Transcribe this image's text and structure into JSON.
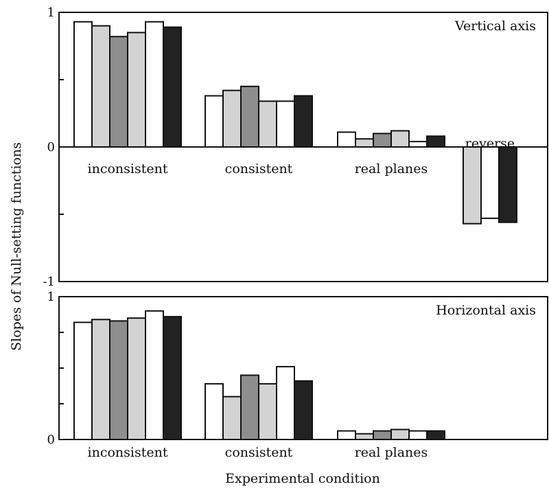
{
  "chart_data": {
    "type": "bar",
    "ylabel": "Slopes of Null-setting functions",
    "xlabel": "Experimental condition",
    "series_colors": [
      "#ffffff",
      "#d3d3d3",
      "#8e8e8e",
      "#d3d3d3",
      "#ffffff",
      "#222222"
    ],
    "panels": [
      {
        "title": "Vertical axis",
        "ylim": [
          -1,
          1
        ],
        "yticks": [
          -1,
          -0.5,
          0,
          0.5,
          1
        ],
        "ytick_labels": [
          "-1",
          "",
          "0",
          "",
          "1"
        ],
        "groups": [
          {
            "label": "inconsistent",
            "values": [
              0.93,
              0.9,
              0.82,
              0.85,
              0.93,
              0.89
            ],
            "series_idx": [
              0,
              1,
              2,
              3,
              4,
              5
            ]
          },
          {
            "label": "consistent",
            "values": [
              0.38,
              0.42,
              0.45,
              0.34,
              0.34,
              0.38
            ],
            "series_idx": [
              0,
              1,
              2,
              3,
              4,
              5
            ]
          },
          {
            "label": "real planes",
            "values": [
              0.11,
              0.06,
              0.1,
              0.12,
              0.04,
              0.08
            ],
            "series_idx": [
              0,
              1,
              2,
              3,
              4,
              5
            ]
          },
          {
            "label": "reverse",
            "values": [
              -0.57,
              -0.53,
              -0.56
            ],
            "series_idx": [
              1,
              4,
              5
            ]
          }
        ]
      },
      {
        "title": "Horizontal axis",
        "ylim": [
          0,
          1
        ],
        "yticks": [
          0,
          0.25,
          0.5,
          0.75,
          1
        ],
        "ytick_labels": [
          "0",
          "",
          "",
          "",
          "1"
        ],
        "groups": [
          {
            "label": "inconsistent",
            "values": [
              0.82,
              0.84,
              0.83,
              0.85,
              0.9,
              0.86
            ],
            "series_idx": [
              0,
              1,
              2,
              3,
              4,
              5
            ]
          },
          {
            "label": "consistent",
            "values": [
              0.39,
              0.3,
              0.45,
              0.39,
              0.51,
              0.41
            ],
            "series_idx": [
              0,
              1,
              2,
              3,
              4,
              5
            ]
          },
          {
            "label": "real planes",
            "values": [
              0.06,
              0.04,
              0.06,
              0.07,
              0.06,
              0.06
            ],
            "series_idx": [
              0,
              1,
              2,
              3,
              4,
              5
            ]
          }
        ]
      }
    ]
  }
}
